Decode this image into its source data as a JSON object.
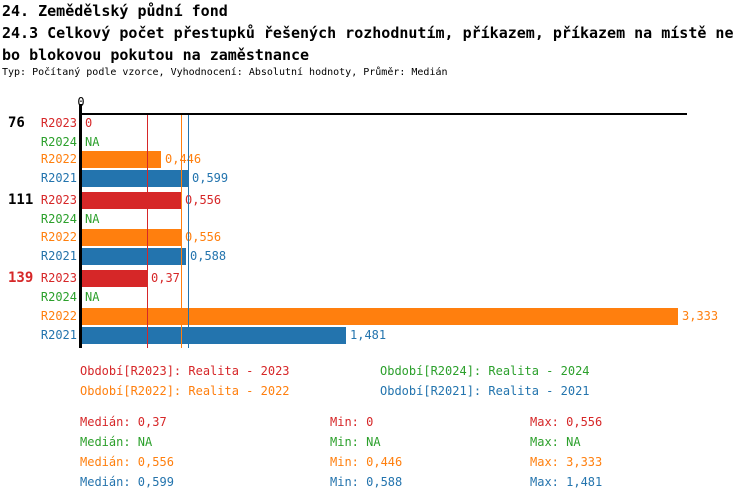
{
  "title": {
    "line1": "24. Zemědělský půdní fond",
    "line2": "24.3 Celkový počet přestupků řešených rozhodnutím, příkazem, příkazem na místě ne",
    "line3": "bo blokovou pokutou na zaměstnance",
    "subtitle": "Typ: Počítaný podle vzorce, Vyhodnocení: Absolutní hodnoty, Průměr: Medián"
  },
  "colors": {
    "r2023_red": "#d62728",
    "r2024_green": "#2ca02c",
    "r2022_orange": "#ff7f0e",
    "r2021_blue": "#2374ae",
    "axis_black": "#000000"
  },
  "chart_data": {
    "type": "bar",
    "orientation": "horizontal",
    "x_axis": {
      "tick_labels": [
        "0"
      ],
      "min": 0,
      "max": 3.39,
      "grid": "median-lines-only"
    },
    "groups": [
      {
        "label": "76",
        "color": "#000000"
      },
      {
        "label": "111",
        "color": "#000000"
      },
      {
        "label": "139",
        "color": "#d62728"
      }
    ],
    "series": [
      {
        "name": "R2023",
        "color": "#d62728",
        "values": [
          0,
          0.556,
          0.37
        ],
        "value_labels": [
          "0",
          "0,556",
          "0,37"
        ]
      },
      {
        "name": "R2024",
        "color": "#2ca02c",
        "values": [
          null,
          null,
          null
        ],
        "value_labels": [
          "NA",
          "NA",
          "NA"
        ]
      },
      {
        "name": "R2022",
        "color": "#ff7f0e",
        "values": [
          0.446,
          0.556,
          3.333
        ],
        "value_labels": [
          "0,446",
          "0,556",
          "3,333"
        ]
      },
      {
        "name": "R2021",
        "color": "#2374ae",
        "values": [
          0.599,
          0.588,
          1.481
        ],
        "value_labels": [
          "0,599",
          "0,588",
          "1,481"
        ]
      }
    ],
    "median_lines": [
      {
        "series": "R2023",
        "value": 0.37,
        "color": "#d62728"
      },
      {
        "series": "R2022",
        "value": 0.556,
        "color": "#ff7f0e"
      },
      {
        "series": "R2021",
        "value": 0.599,
        "color": "#2374ae"
      }
    ]
  },
  "legend": {
    "items": [
      {
        "label": "Období[R2023]: Realita - 2023",
        "color": "#d62728"
      },
      {
        "label": "Období[R2024]: Realita - 2024",
        "color": "#2ca02c"
      },
      {
        "label": "Období[R2022]: Realita - 2022",
        "color": "#ff7f0e"
      },
      {
        "label": "Období[R2021]: Realita - 2021",
        "color": "#2374ae"
      }
    ]
  },
  "stats": {
    "col_labels": {
      "median": "Medián",
      "min": "Min",
      "max": "Max"
    },
    "rows": [
      {
        "series": "R2023",
        "color": "#d62728",
        "median": "0,37",
        "min": "0",
        "max": "0,556"
      },
      {
        "series": "R2024",
        "color": "#2ca02c",
        "median": "NA",
        "min": "NA",
        "max": "NA"
      },
      {
        "series": "R2022",
        "color": "#ff7f0e",
        "median": "0,556",
        "min": "0,446",
        "max": "3,333"
      },
      {
        "series": "R2021",
        "color": "#2374ae",
        "median": "0,599",
        "min": "0,588",
        "max": "1,481"
      }
    ]
  }
}
